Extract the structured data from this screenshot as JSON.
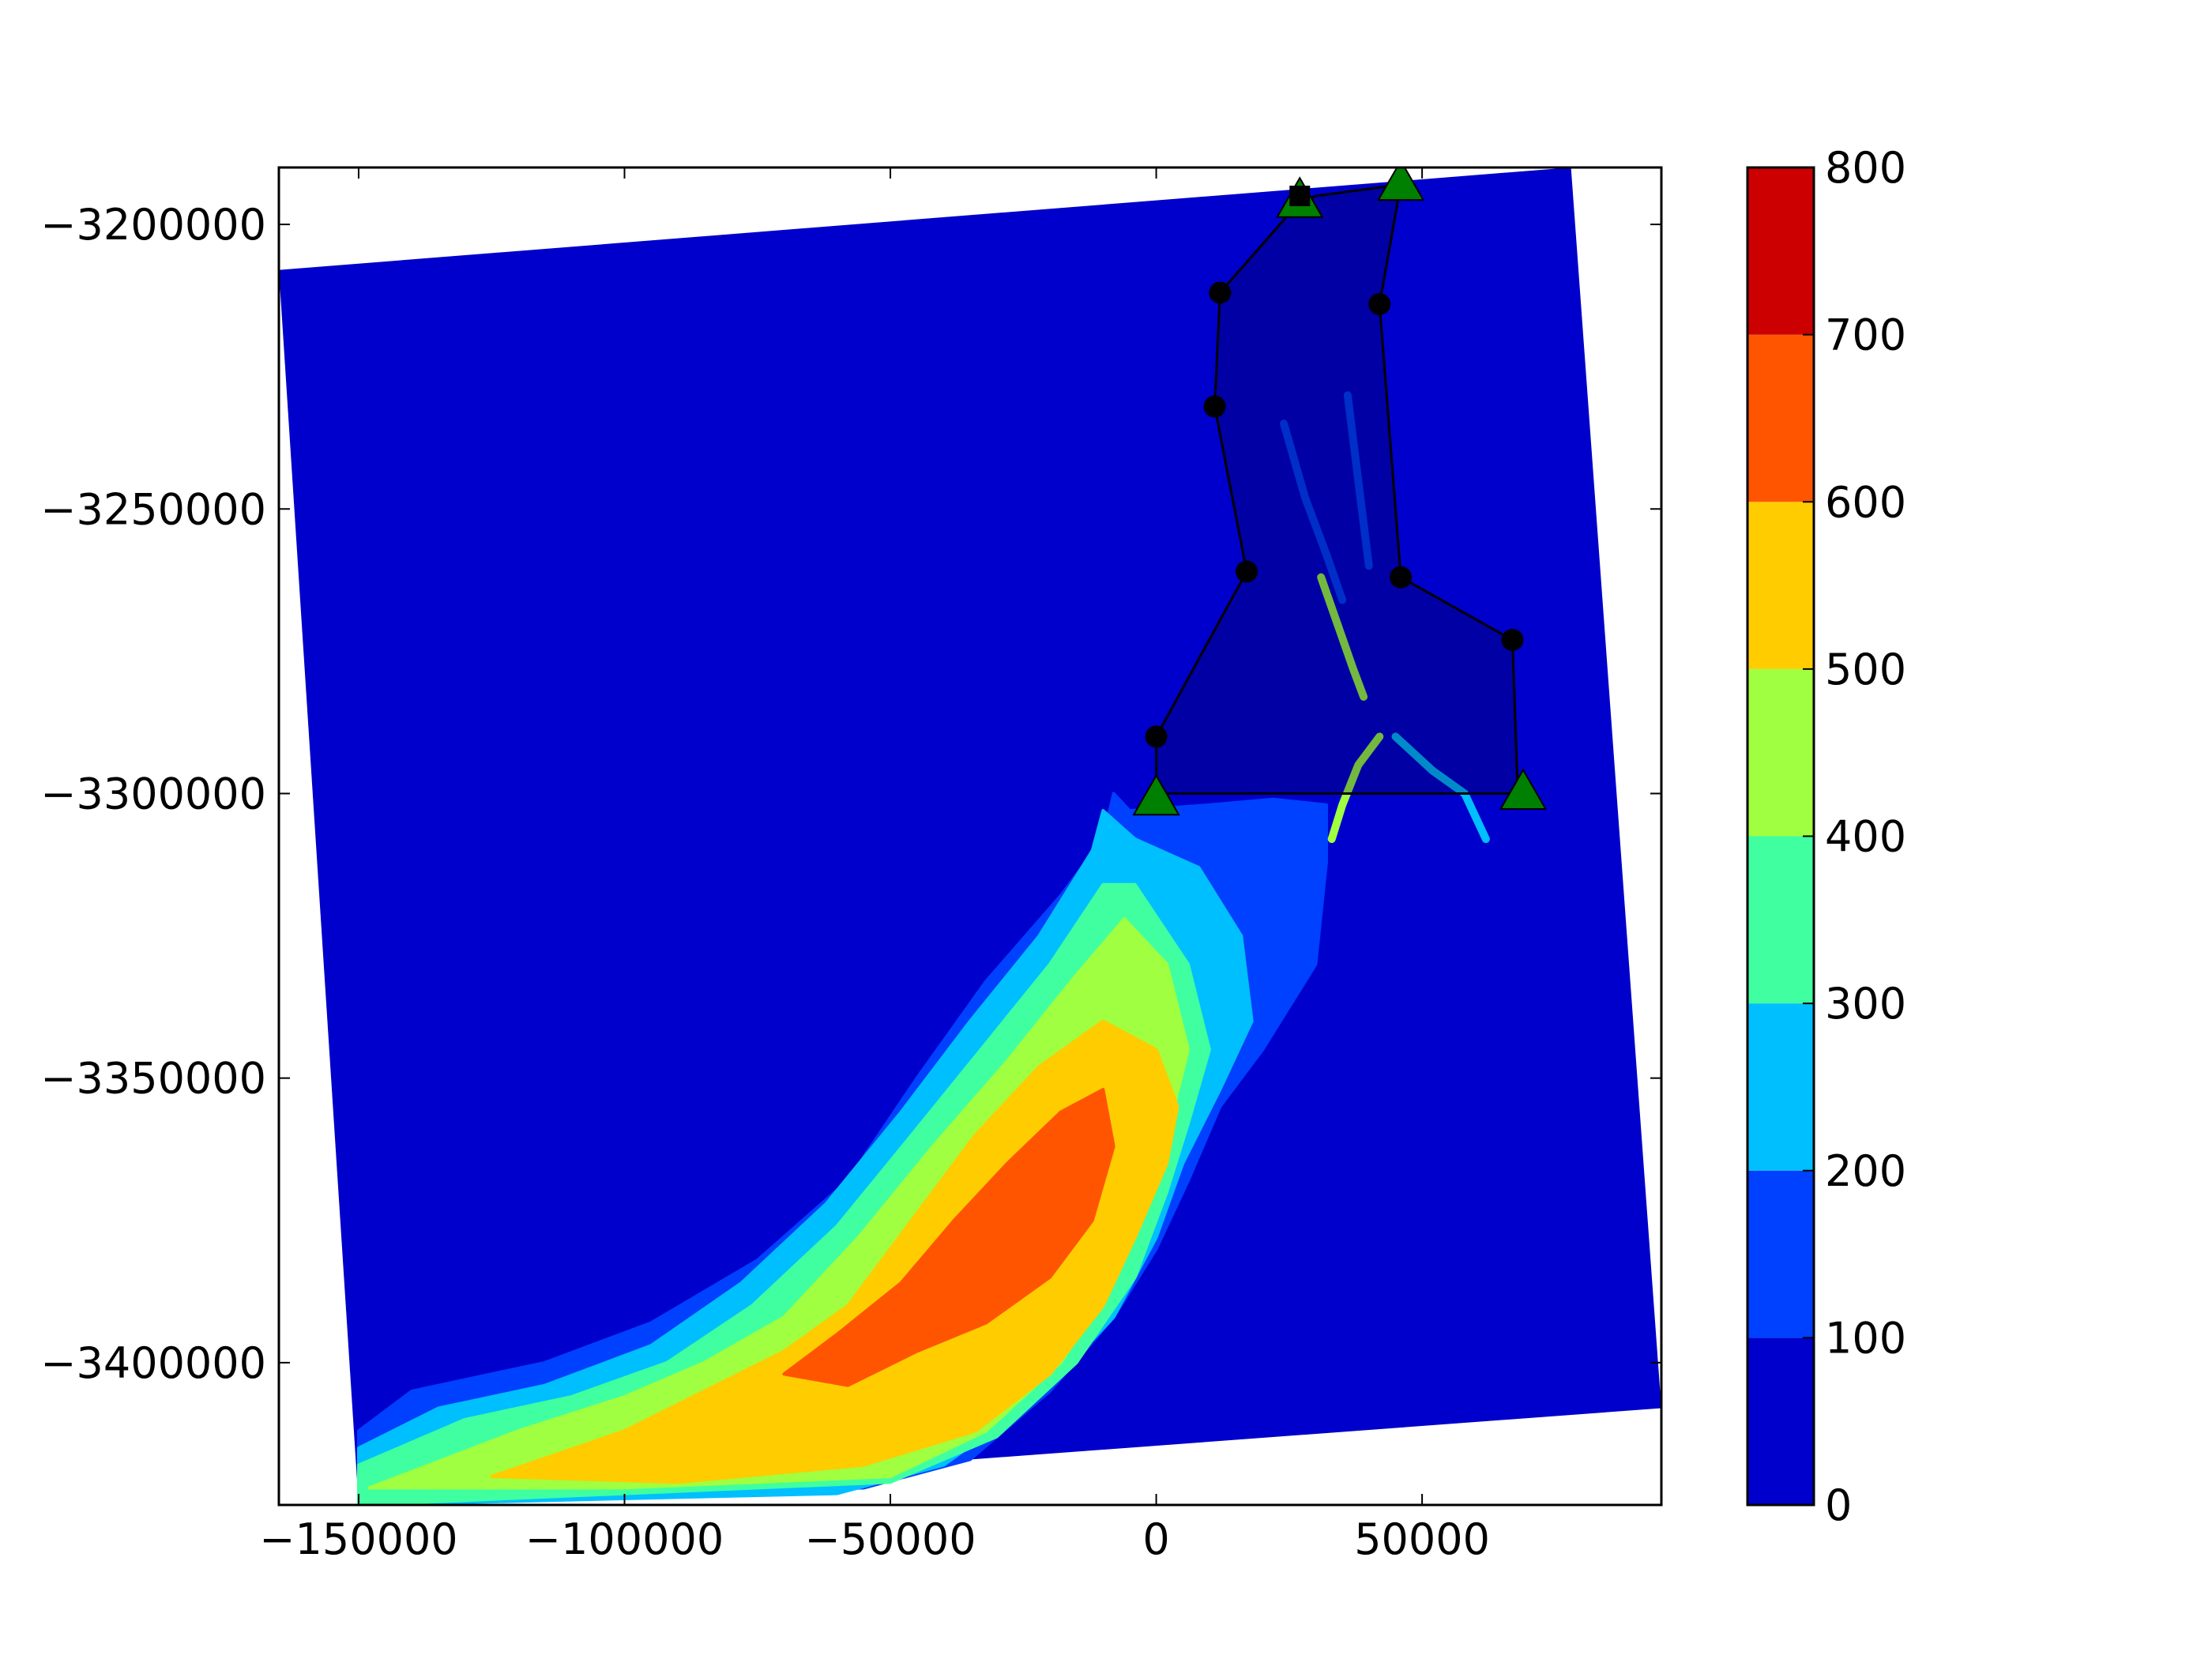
{
  "chart_data": {
    "type": "heatmap",
    "xlim": [
      -165000,
      95000
    ],
    "ylim": [
      -3425000,
      -3190000
    ],
    "x_ticks": [
      -150000,
      -100000,
      -50000,
      0,
      50000
    ],
    "x_tick_labels": [
      "−150000",
      "−100000",
      "−50000",
      "0",
      "50000"
    ],
    "y_ticks": [
      -3200000,
      -3250000,
      -3300000,
      -3350000,
      -3400000
    ],
    "y_tick_labels": [
      "−3200000",
      "−3250000",
      "−3300000",
      "−3350000",
      "−3400000"
    ],
    "grid": false,
    "colorbar": {
      "levels": [
        0,
        100,
        200,
        300,
        400,
        500,
        600,
        700,
        800
      ],
      "tick_labels": [
        "0",
        "100",
        "200",
        "300",
        "400",
        "500",
        "600",
        "700",
        "800"
      ],
      "colors": [
        "#0000cc",
        "#0040ff",
        "#00bfff",
        "#40ffa0",
        "#a0ff40",
        "#ffcc00",
        "#ff5500",
        "#cc0000"
      ]
    },
    "domain_corners": [
      [
        -165000,
        -3208000
      ],
      [
        78000,
        -3190000
      ],
      [
        95000,
        -3408000
      ],
      [
        -150000,
        -3425000
      ]
    ],
    "contour_regions": [
      {
        "level": 100,
        "color": "#0040ff",
        "points": [
          [
            -150000,
            -3412000
          ],
          [
            -140000,
            -3405000
          ],
          [
            -115000,
            -3400000
          ],
          [
            -95000,
            -3393000
          ],
          [
            -75000,
            -3382000
          ],
          [
            -58000,
            -3368000
          ],
          [
            -45000,
            -3350000
          ],
          [
            -32000,
            -3333000
          ],
          [
            -18000,
            -3318000
          ],
          [
            -10000,
            -3308000
          ],
          [
            -8000,
            -3300000
          ],
          [
            -5000,
            -3303000
          ],
          [
            10000,
            -3302000
          ],
          [
            22000,
            -3301000
          ],
          [
            32000,
            -3302000
          ],
          [
            32000,
            -3312000
          ],
          [
            30000,
            -3330000
          ],
          [
            20000,
            -3345000
          ],
          [
            12000,
            -3355000
          ],
          [
            6000,
            -3368000
          ],
          [
            0,
            -3380000
          ],
          [
            -8000,
            -3392000
          ],
          [
            -20000,
            -3405000
          ],
          [
            -35000,
            -3417000
          ],
          [
            -55000,
            -3422000
          ],
          [
            -150000,
            -3425000
          ]
        ]
      },
      {
        "level": 200,
        "color": "#00bfff",
        "points": [
          [
            -150000,
            -3415000
          ],
          [
            -135000,
            -3408000
          ],
          [
            -115000,
            -3404000
          ],
          [
            -95000,
            -3397000
          ],
          [
            -78000,
            -3386000
          ],
          [
            -62000,
            -3372000
          ],
          [
            -48000,
            -3356000
          ],
          [
            -35000,
            -3340000
          ],
          [
            -22000,
            -3325000
          ],
          [
            -12000,
            -3310000
          ],
          [
            -10000,
            -3303000
          ],
          [
            -4000,
            -3308000
          ],
          [
            8000,
            -3313000
          ],
          [
            16000,
            -3325000
          ],
          [
            18000,
            -3340000
          ],
          [
            12000,
            -3352000
          ],
          [
            5000,
            -3365000
          ],
          [
            0,
            -3378000
          ],
          [
            -8000,
            -3392000
          ],
          [
            -22000,
            -3406000
          ],
          [
            -40000,
            -3418000
          ],
          [
            -60000,
            -3423000
          ],
          [
            -150000,
            -3425000
          ]
        ]
      },
      {
        "level": 300,
        "color": "#40ffa0",
        "points": [
          [
            -150000,
            -3418000
          ],
          [
            -130000,
            -3410000
          ],
          [
            -110000,
            -3406000
          ],
          [
            -92000,
            -3400000
          ],
          [
            -76000,
            -3390000
          ],
          [
            -60000,
            -3376000
          ],
          [
            -46000,
            -3360000
          ],
          [
            -33000,
            -3345000
          ],
          [
            -20000,
            -3330000
          ],
          [
            -10000,
            -3316000
          ],
          [
            -4000,
            -3316000
          ],
          [
            6000,
            -3330000
          ],
          [
            10000,
            -3345000
          ],
          [
            6000,
            -3358000
          ],
          [
            2000,
            -3370000
          ],
          [
            -4000,
            -3385000
          ],
          [
            -15000,
            -3400000
          ],
          [
            -30000,
            -3413000
          ],
          [
            -50000,
            -3421000
          ],
          [
            -150000,
            -3425000
          ]
        ]
      },
      {
        "level": 400,
        "color": "#a0ff40",
        "points": [
          [
            -148000,
            -3422000
          ],
          [
            -120000,
            -3412000
          ],
          [
            -100000,
            -3406000
          ],
          [
            -85000,
            -3400000
          ],
          [
            -70000,
            -3392000
          ],
          [
            -56000,
            -3378000
          ],
          [
            -42000,
            -3362000
          ],
          [
            -28000,
            -3347000
          ],
          [
            -16000,
            -3333000
          ],
          [
            -6000,
            -3322000
          ],
          [
            2000,
            -3330000
          ],
          [
            6000,
            -3345000
          ],
          [
            2000,
            -3360000
          ],
          [
            -2000,
            -3372000
          ],
          [
            -8000,
            -3386000
          ],
          [
            -18000,
            -3400000
          ],
          [
            -32000,
            -3412000
          ],
          [
            -50000,
            -3420000
          ],
          [
            -100000,
            -3422000
          ]
        ]
      },
      {
        "level": 500,
        "color": "#ffcc00",
        "points": [
          [
            -125000,
            -3420000
          ],
          [
            -100000,
            -3412000
          ],
          [
            -85000,
            -3405000
          ],
          [
            -70000,
            -3398000
          ],
          [
            -58000,
            -3390000
          ],
          [
            -46000,
            -3375000
          ],
          [
            -34000,
            -3360000
          ],
          [
            -22000,
            -3348000
          ],
          [
            -10000,
            -3340000
          ],
          [
            0,
            -3345000
          ],
          [
            4000,
            -3355000
          ],
          [
            2000,
            -3365000
          ],
          [
            -4000,
            -3378000
          ],
          [
            -10000,
            -3390000
          ],
          [
            -20000,
            -3402000
          ],
          [
            -34000,
            -3412000
          ],
          [
            -55000,
            -3418000
          ],
          [
            -90000,
            -3421000
          ]
        ]
      },
      {
        "level": 600,
        "color": "#ff5500",
        "points": [
          [
            -70000,
            -3402000
          ],
          [
            -60000,
            -3395000
          ],
          [
            -48000,
            -3386000
          ],
          [
            -38000,
            -3375000
          ],
          [
            -28000,
            -3365000
          ],
          [
            -18000,
            -3356000
          ],
          [
            -10000,
            -3352000
          ],
          [
            -8000,
            -3362000
          ],
          [
            -12000,
            -3375000
          ],
          [
            -20000,
            -3385000
          ],
          [
            -32000,
            -3393000
          ],
          [
            -45000,
            -3398000
          ],
          [
            -58000,
            -3404000
          ]
        ]
      }
    ],
    "region_outline": {
      "points": [
        [
          30000,
          -3195000
        ],
        [
          27000,
          -3196000
        ],
        [
          12000,
          -3212000
        ],
        [
          11000,
          -3232000
        ],
        [
          17000,
          -3261000
        ],
        [
          0,
          -3290000
        ],
        [
          0,
          -3300000
        ],
        [
          68000,
          -3300000
        ],
        [
          67000,
          -3273000
        ],
        [
          46000,
          -3262000
        ],
        [
          42000,
          -3214000
        ],
        [
          46000,
          -3193000
        ]
      ],
      "circle_vertices": [
        [
          12000,
          -3212000
        ],
        [
          11000,
          -3232000
        ],
        [
          17000,
          -3261000
        ],
        [
          0,
          -3290000
        ],
        [
          42000,
          -3214000
        ],
        [
          46000,
          -3262000
        ],
        [
          67000,
          -3273000
        ]
      ],
      "triangle_vertices": [
        [
          27000,
          -3196000
        ],
        [
          46000,
          -3193000
        ],
        [
          0,
          -3301000
        ],
        [
          69000,
          -3300000
        ]
      ],
      "square_vertices": [
        [
          27000,
          -3195000
        ]
      ]
    },
    "channel_streaks": [
      {
        "color": "#0040ff",
        "points": [
          [
            24000,
            -3235000
          ],
          [
            28000,
            -3248000
          ],
          [
            32000,
            -3258000
          ],
          [
            35000,
            -3266000
          ]
        ]
      },
      {
        "color": "#a0ff40",
        "points": [
          [
            31000,
            -3262000
          ],
          [
            34000,
            -3270000
          ],
          [
            37000,
            -3278000
          ],
          [
            39000,
            -3283000
          ]
        ]
      },
      {
        "color": "#a0ff40",
        "points": [
          [
            42000,
            -3290000
          ],
          [
            38000,
            -3295000
          ],
          [
            35000,
            -3302000
          ],
          [
            33000,
            -3308000
          ]
        ]
      },
      {
        "color": "#00bfff",
        "points": [
          [
            45000,
            -3290000
          ],
          [
            52000,
            -3296000
          ],
          [
            58000,
            -3300000
          ],
          [
            62000,
            -3308000
          ]
        ]
      },
      {
        "color": "#0040ff",
        "points": [
          [
            36000,
            -3230000
          ],
          [
            38000,
            -3245000
          ],
          [
            40000,
            -3260000
          ]
        ]
      }
    ]
  }
}
